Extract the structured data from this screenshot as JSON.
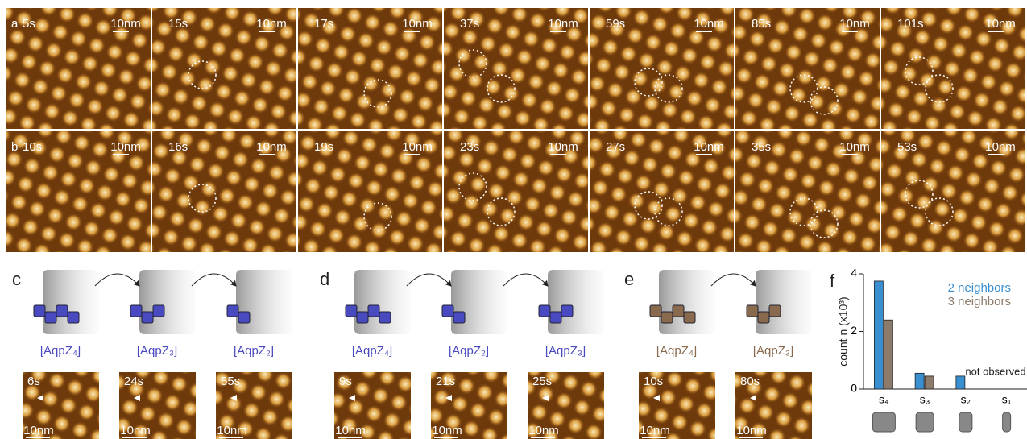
{
  "panel_a": {
    "label": "a",
    "frames": [
      {
        "time": "5s",
        "scale": "10nm"
      },
      {
        "time": "15s",
        "scale": "10nm"
      },
      {
        "time": "17s",
        "scale": "10nm"
      },
      {
        "time": "37s",
        "scale": "10nm"
      },
      {
        "time": "59s",
        "scale": "10nm"
      },
      {
        "time": "85s",
        "scale": "10nm"
      },
      {
        "time": "101s",
        "scale": "10nm"
      }
    ]
  },
  "panel_b": {
    "label": "b",
    "frames": [
      {
        "time": "10s",
        "scale": "10nm"
      },
      {
        "time": "16s",
        "scale": "10nm"
      },
      {
        "time": "19s",
        "scale": "10nm"
      },
      {
        "time": "23s",
        "scale": "10nm"
      },
      {
        "time": "27s",
        "scale": "10nm"
      },
      {
        "time": "35s",
        "scale": "10nm"
      },
      {
        "time": "53s",
        "scale": "10nm"
      }
    ]
  },
  "panel_c": {
    "label": "c",
    "states": [
      "[AqpZ₄]",
      "[AqpZ₃]",
      "[AqpZ₂]"
    ],
    "frames": [
      {
        "time": "6s",
        "scale": "10nm"
      },
      {
        "time": "24s",
        "scale": "10nm"
      },
      {
        "time": "55s",
        "scale": "10nm"
      }
    ]
  },
  "panel_d": {
    "label": "d",
    "states": [
      "[AqpZ₄]",
      "[AqpZ₂]",
      "[AqpZ₃]"
    ],
    "frames": [
      {
        "time": "9s",
        "scale": "10nm"
      },
      {
        "time": "21s",
        "scale": "10nm"
      },
      {
        "time": "25s",
        "scale": "10nm"
      }
    ]
  },
  "panel_e": {
    "label": "e",
    "states": [
      "[AqpZ₄]",
      "[AqpZ₃]"
    ],
    "frames": [
      {
        "time": "10s",
        "scale": "10nm"
      },
      {
        "time": "80s",
        "scale": "10nm"
      }
    ]
  },
  "chart_data": {
    "type": "bar",
    "label": "f",
    "ylabel": "count n (x10³)",
    "categories": [
      "s₄",
      "s₃",
      "s₂",
      "s₁"
    ],
    "series": [
      {
        "name": "2 neighbors",
        "color": "#3a8fd0",
        "values": [
          3.75,
          0.55,
          0.45,
          null
        ]
      },
      {
        "name": "3 neighbors",
        "color": "#8c7b6b",
        "values": [
          2.4,
          0.45,
          null,
          null
        ]
      }
    ],
    "ylim": [
      0,
      4
    ],
    "yticks": [
      0,
      2,
      4
    ],
    "annotation": "not observed"
  }
}
